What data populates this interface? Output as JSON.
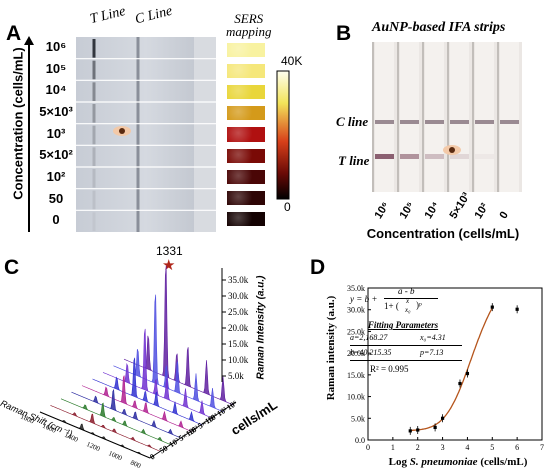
{
  "panel_a": {
    "letter": "A",
    "t_line_label": "T Line",
    "c_line_label": "C Line",
    "sers_label_1": "SERS",
    "sers_label_2": "mapping",
    "y_axis_label": "Concentration (cells/mL)",
    "colorbar_max": "40K",
    "colorbar_min": "0",
    "concentrations": [
      "10⁶",
      "10⁵",
      "10⁴",
      "5×10³",
      "10³",
      "5×10²",
      "10²",
      "50",
      "0"
    ],
    "t_line_intensity": [
      1.0,
      0.6,
      0.45,
      0.35,
      0.25,
      0.18,
      0.12,
      0.08,
      0.04
    ],
    "sers_colors": [
      "#f8f2a0",
      "#f5e77a",
      "#e9d63a",
      "#d49a1a",
      "#b01010",
      "#7a0a06",
      "#4a0606",
      "#2e0505",
      "#140202"
    ]
  },
  "panel_b": {
    "letter": "B",
    "title": "AuNP-based IFA strips",
    "c_line_label": "C line",
    "t_line_label": "T line",
    "x_axis_label": "Concentration (cells/mL)",
    "strips": [
      "10⁶",
      "10⁵",
      "10⁴",
      "5×10³",
      "10²",
      "0"
    ],
    "t_line_intensity": [
      0.85,
      0.55,
      0.3,
      0.15,
      0.05,
      0.0
    ]
  },
  "panel_c": {
    "letter": "C",
    "peak_label": "1331",
    "z_axis_label": "Raman Intensity (a.u.)",
    "z_ticks": [
      "5.0k",
      "10.0k",
      "15.0k",
      "20.0k",
      "25.0k",
      "30.0k",
      "35.0k"
    ],
    "x_axis_label": "Raman Shift (cm⁻¹)",
    "x_ticks": [
      "800",
      "1000",
      "1200",
      "1400",
      "1600",
      "1800"
    ],
    "depth_axis_label": "cells/mL",
    "depth_ticks": [
      "0",
      "50",
      "10²",
      "5×10²",
      "10³",
      "5×10³",
      "10⁴",
      "10⁵",
      "10⁶"
    ],
    "series_colors": [
      "#222222",
      "#8a1a2a",
      "#2a7a2a",
      "#2a2aa0",
      "#b02090",
      "#3030d0",
      "#7030d0",
      "#5050e0",
      "#6020a0"
    ]
  },
  "panel_d": {
    "letter": "D",
    "ylabel": "Raman intensity (a.u.)",
    "xlabel_prefix": "Log ",
    "xlabel_italic": "S. pneumoniae",
    "xlabel_suffix": " (cells/mL)",
    "equation_lhs": "y = b +",
    "eq_numerator": "a - b",
    "eq_denominator": "1+ (",
    "eq_frac_num": "x",
    "eq_frac_den": "x₀",
    "eq_power": ")ᵖ",
    "fitting_title": "Fitting Parameters",
    "params": [
      "a=2,168.27",
      "x₀=4.31",
      "b=40,215.35",
      "p=7.13"
    ],
    "r2": "R² = 0.995"
  },
  "chart_data": {
    "type": "scatter",
    "title": "",
    "xlabel": "Log S. pneumoniae (cells/mL)",
    "ylabel": "Raman intensity (a.u.)",
    "xlim": [
      0,
      7
    ],
    "ylim": [
      0,
      35000
    ],
    "x_ticks": [
      "0",
      "1",
      "2",
      "3",
      "4",
      "5",
      "6",
      "7"
    ],
    "y_ticks": [
      "0.0",
      "5.0k",
      "10.0k",
      "15.0k",
      "20.0k",
      "25.0k",
      "30.0k",
      "35.0k"
    ],
    "series": [
      {
        "x": [
          1.7,
          2.0,
          2.7,
          3.0,
          3.7,
          4.0,
          5.0,
          6.0
        ],
        "y": [
          2100,
          2300,
          2900,
          5000,
          13000,
          15300,
          30600,
          30100
        ]
      }
    ],
    "fit": {
      "a": 2168.27,
      "b": 40215.35,
      "x0": 4.31,
      "p": 7.13,
      "color": "#b5551c"
    }
  }
}
